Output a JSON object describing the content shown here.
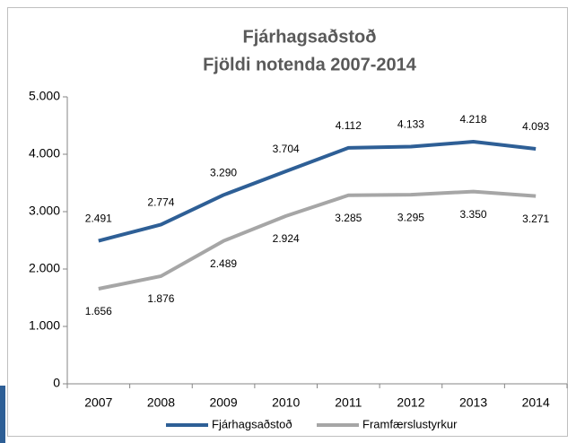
{
  "chart_data": {
    "type": "line",
    "title": "Fjárhagsaðstoð",
    "subtitle": "Fjöldi notenda 2007-2014",
    "categories": [
      "2007",
      "2008",
      "2009",
      "2010",
      "2011",
      "2012",
      "2013",
      "2014"
    ],
    "series": [
      {
        "name": "Fjárhagsaðstoð",
        "color": "#2e5f96",
        "values": [
          2491,
          2774,
          3290,
          3704,
          4112,
          4133,
          4218,
          4093
        ],
        "value_labels": [
          "2.491",
          "2.774",
          "3.290",
          "3.704",
          "4.112",
          "4.133",
          "4.218",
          "4.093"
        ]
      },
      {
        "name": "Framfærslustyrkur",
        "color": "#a6a6a6",
        "values": [
          1656,
          1876,
          2489,
          2924,
          3285,
          3295,
          3350,
          3271
        ],
        "value_labels": [
          "1.656",
          "1.876",
          "2.489",
          "2.924",
          "3.285",
          "3.295",
          "3.350",
          "3.271"
        ]
      }
    ],
    "ylim": [
      0,
      5000
    ],
    "yticks": [
      0,
      {
        "value": 1000,
        "label": "1.000"
      },
      {
        "value": 2000,
        "label": "2.000"
      },
      {
        "value": 3000,
        "label": "3.000"
      },
      {
        "value": 4000,
        "label": "4.000"
      },
      {
        "value": 5000,
        "label": "5.000"
      }
    ],
    "grid": false,
    "legend": "bottom"
  }
}
